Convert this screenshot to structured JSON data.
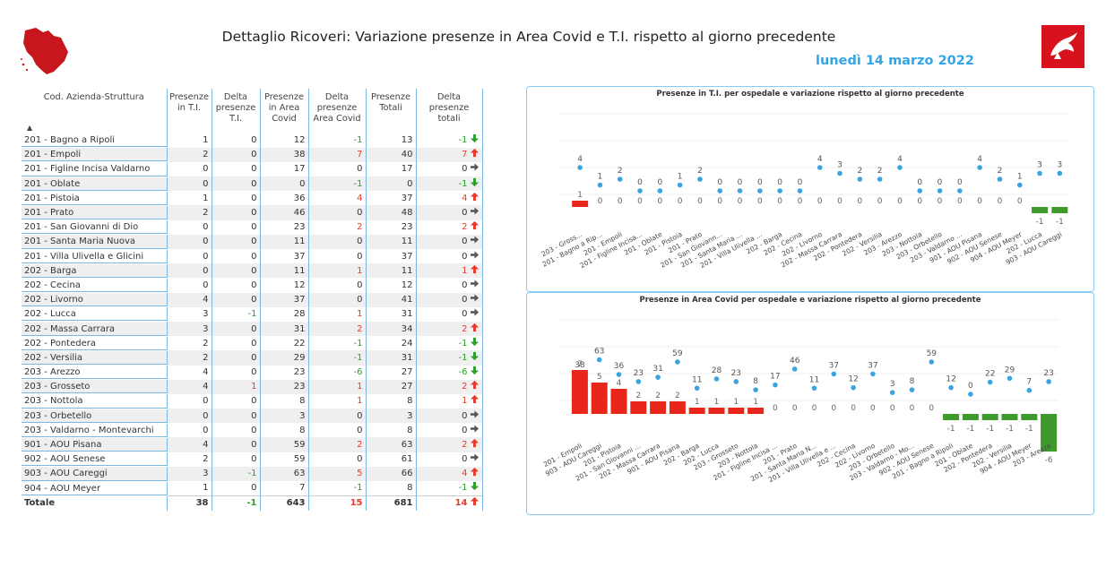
{
  "header": {
    "title": "Dettaglio Ricoveri: Variazione presenze in Area Covid e T.I. rispetto al giorno precedente",
    "date": "lunedì 14 marzo 2022"
  },
  "colors": {
    "accent": "#35a5e0",
    "up": "#e8392e",
    "down": "#2ca02c",
    "neutral": "#555555",
    "bar_pos": "#e8261c",
    "bar_neg": "#3e9a2c",
    "dot": "#3aa3e0"
  },
  "table": {
    "columns": [
      "Cod. Azienda-Struttura",
      "Presenze in T.I.",
      "Delta presenze T.I.",
      "Presenze in Area Covid",
      "Delta presenze Area Covid",
      "Presenze Totali",
      "Delta presenze totali"
    ],
    "rows": [
      [
        "201 - Bagno a Ripoli",
        "1",
        "0",
        "12",
        "-1",
        "13",
        "-1"
      ],
      [
        "201 - Empoli",
        "2",
        "0",
        "38",
        "7",
        "40",
        "7"
      ],
      [
        "201 - Figline Incisa Valdarno",
        "0",
        "0",
        "17",
        "0",
        "17",
        "0"
      ],
      [
        "201 - Oblate",
        "0",
        "0",
        "0",
        "-1",
        "0",
        "-1"
      ],
      [
        "201 - Pistoia",
        "1",
        "0",
        "36",
        "4",
        "37",
        "4"
      ],
      [
        "201 - Prato",
        "2",
        "0",
        "46",
        "0",
        "48",
        "0"
      ],
      [
        "201 - San Giovanni di Dio",
        "0",
        "0",
        "23",
        "2",
        "23",
        "2"
      ],
      [
        "201 - Santa Maria Nuova",
        "0",
        "0",
        "11",
        "0",
        "11",
        "0"
      ],
      [
        "201 - Villa Ulivella e Glicini",
        "0",
        "0",
        "37",
        "0",
        "37",
        "0"
      ],
      [
        "202 - Barga",
        "0",
        "0",
        "11",
        "1",
        "11",
        "1"
      ],
      [
        "202 - Cecina",
        "0",
        "0",
        "12",
        "0",
        "12",
        "0"
      ],
      [
        "202 - Livorno",
        "4",
        "0",
        "37",
        "0",
        "41",
        "0"
      ],
      [
        "202 - Lucca",
        "3",
        "-1",
        "28",
        "1",
        "31",
        "0"
      ],
      [
        "202 - Massa Carrara",
        "3",
        "0",
        "31",
        "2",
        "34",
        "2"
      ],
      [
        "202 - Pontedera",
        "2",
        "0",
        "22",
        "-1",
        "24",
        "-1"
      ],
      [
        "202 - Versilia",
        "2",
        "0",
        "29",
        "-1",
        "31",
        "-1"
      ],
      [
        "203 - Arezzo",
        "4",
        "0",
        "23",
        "-6",
        "27",
        "-6"
      ],
      [
        "203 - Grosseto",
        "4",
        "1",
        "23",
        "1",
        "27",
        "2"
      ],
      [
        "203 - Nottola",
        "0",
        "0",
        "8",
        "1",
        "8",
        "1"
      ],
      [
        "203 - Orbetello",
        "0",
        "0",
        "3",
        "0",
        "3",
        "0"
      ],
      [
        "203 - Valdarno - Montevarchi",
        "0",
        "0",
        "8",
        "0",
        "8",
        "0"
      ],
      [
        "901 - AOU Pisana",
        "4",
        "0",
        "59",
        "2",
        "63",
        "2"
      ],
      [
        "902 - AOU Senese",
        "2",
        "0",
        "59",
        "0",
        "61",
        "0"
      ],
      [
        "903 - AOU Careggi",
        "3",
        "-1",
        "63",
        "5",
        "66",
        "4"
      ],
      [
        "904 - AOU Meyer",
        "1",
        "0",
        "7",
        "-1",
        "8",
        "-1"
      ]
    ],
    "total": [
      "Totale",
      "38",
      "-1",
      "643",
      "15",
      "681",
      "14"
    ]
  },
  "chart_data": [
    {
      "type": "bar",
      "title": "Presenze in T.I. per ospedale e variazione rispetto al giorno precedente",
      "categories": [
        "203 - Gross...",
        "201 - Bagno a Rip...",
        "201 - Empoli",
        "201 - Figline Incisa...",
        "201 - Oblate",
        "201 - Pistoia",
        "201 - Prato",
        "201 - San Giovann...",
        "201 - Santa Maria ...",
        "201 - Villa Ulivella ...",
        "202 - Barga",
        "202 - Cecina",
        "202 - Livorno",
        "202 - Massa Carrara",
        "202 - Pontedera",
        "202 - Versilia",
        "203 - Arezzo",
        "203 - Nottola",
        "203 - Orbetello",
        "203 - Valdarno ...",
        "901 - AOU Pisana",
        "902 - AOU Senese",
        "904 - AOU Meyer",
        "202 - Lucca",
        "903 - AOU Careggi"
      ],
      "series": [
        {
          "name": "Presenze",
          "kind": "dot",
          "values": [
            4,
            1,
            2,
            0,
            0,
            1,
            2,
            0,
            0,
            0,
            0,
            0,
            4,
            3,
            2,
            2,
            4,
            0,
            0,
            0,
            4,
            2,
            1,
            3,
            3
          ]
        },
        {
          "name": "Variazione",
          "kind": "bar",
          "values": [
            1,
            0,
            0,
            0,
            0,
            0,
            0,
            0,
            0,
            0,
            0,
            0,
            0,
            0,
            0,
            0,
            0,
            0,
            0,
            0,
            0,
            0,
            0,
            -1,
            -1
          ]
        }
      ]
    },
    {
      "type": "bar",
      "title": "Presenze in Area Covid per ospedale e variazione rispetto al giorno precedente",
      "categories": [
        "201 - Empoli",
        "903 - AOU Careggi",
        "201 - Pistoia",
        "201 - San Giovanni ...",
        "202 - Massa Carrara",
        "901 - AOU Pisana",
        "202 - Barga",
        "202 - Lucca",
        "203 - Grosseto",
        "203 - Nottola",
        "201 - Figline Incisa ...",
        "201 - Prato",
        "201 - Santa Maria N...",
        "201 - Villa Ulivella e ...",
        "202 - Cecina",
        "202 - Livorno",
        "203 - Orbetello",
        "203 - Valdarno - Mo...",
        "902 - AOU Senese",
        "201 - Bagno a Ripoli",
        "201 - Oblate",
        "202 - Pontedera",
        "202 - Versilia",
        "904 - AOU Meyer",
        "203 - Arezzo"
      ],
      "series": [
        {
          "name": "Presenze",
          "kind": "dot",
          "values": [
            38,
            63,
            36,
            23,
            31,
            59,
            11,
            28,
            23,
            8,
            17,
            46,
            11,
            37,
            12,
            37,
            3,
            8,
            59,
            12,
            0,
            22,
            29,
            7,
            23
          ]
        },
        {
          "name": "Variazione",
          "kind": "bar",
          "values": [
            7,
            5,
            4,
            2,
            2,
            2,
            1,
            1,
            1,
            1,
            0,
            0,
            0,
            0,
            0,
            0,
            0,
            0,
            0,
            -1,
            -1,
            -1,
            -1,
            -1,
            -6
          ]
        }
      ]
    }
  ]
}
